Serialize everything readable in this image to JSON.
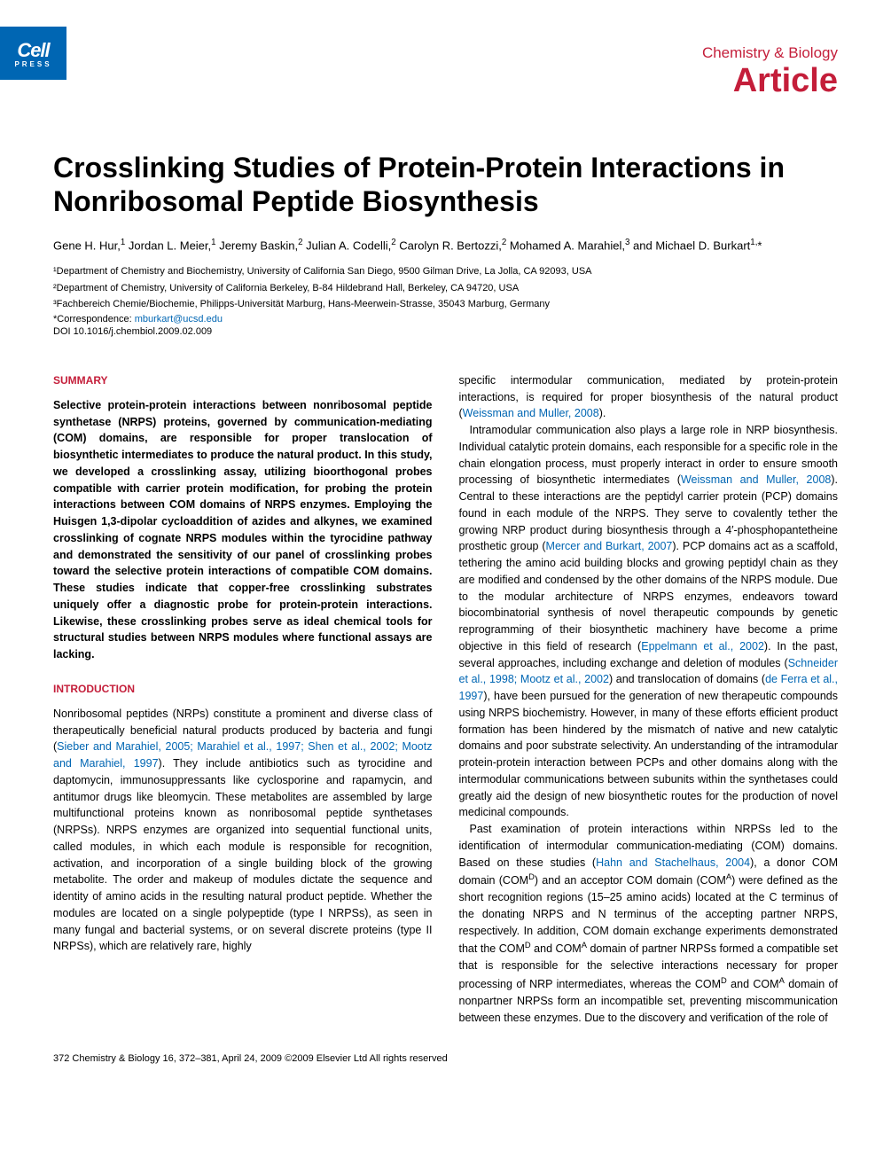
{
  "logo": {
    "brand": "Cell",
    "sub": "PRESS"
  },
  "header": {
    "journal": "Chemistry & Biology",
    "articleType": "Article"
  },
  "title": "Crosslinking Studies of Protein-Protein Interactions in Nonribosomal Peptide Biosynthesis",
  "authors_html": "Gene H. Hur,<sup>1</sup> Jordan L. Meier,<sup>1</sup> Jeremy Baskin,<sup>2</sup> Julian A. Codelli,<sup>2</sup> Carolyn R. Bertozzi,<sup>2</sup> Mohamed A. Marahiel,<sup>3</sup> and Michael D. Burkart<sup>1,</sup>*",
  "affiliations": [
    "¹Department of Chemistry and Biochemistry, University of California San Diego, 9500 Gilman Drive, La Jolla, CA 92093, USA",
    "²Department of Chemistry, University of California Berkeley, B-84 Hildebrand Hall, Berkeley, CA 94720, USA",
    "³Fachbereich Chemie/Biochemie, Philipps-Universität Marburg, Hans-Meerwein-Strasse, 35043 Marburg, Germany"
  ],
  "correspondence": {
    "label": "*Correspondence: ",
    "email": "mburkart@ucsd.edu"
  },
  "doi": "DOI 10.1016/j.chembiol.2009.02.009",
  "sections": {
    "summaryHeading": "SUMMARY",
    "summary": "Selective protein-protein interactions between nonribosomal peptide synthetase (NRPS) proteins, governed by communication-mediating (COM) domains, are responsible for proper translocation of biosynthetic intermediates to produce the natural product. In this study, we developed a crosslinking assay, utilizing bioorthogonal probes compatible with carrier protein modification, for probing the protein interactions between COM domains of NRPS enzymes. Employing the Huisgen 1,3-dipolar cycloaddition of azides and alkynes, we examined crosslinking of cognate NRPS modules within the tyrocidine pathway and demonstrated the sensitivity of our panel of crosslinking probes toward the selective protein interactions of compatible COM domains. These studies indicate that copper-free crosslinking substrates uniquely offer a diagnostic probe for protein-protein interactions. Likewise, these crosslinking probes serve as ideal chemical tools for structural studies between NRPS modules where functional assays are lacking.",
    "introHeading": "INTRODUCTION",
    "introPara1_html": "Nonribosomal peptides (NRPs) constitute a prominent and diverse class of therapeutically beneficial natural products produced by bacteria and fungi (<span class='ref-link'>Sieber and Marahiel, 2005; Marahiel et al., 1997; Shen et al., 2002; Mootz and Marahiel, 1997</span>). They include antibiotics such as tyrocidine and daptomycin, immunosuppressants like cyclosporine and rapamycin, and antitumor drugs like bleomycin. These metabolites are assembled by large multifunctional proteins known as nonribosomal peptide synthetases (NRPSs). NRPS enzymes are organized into sequential functional units, called modules, in which each module is responsible for recognition, activation, and incorporation of a single building block of the growing metabolite. The order and makeup of modules dictate the sequence and identity of amino acids in the resulting natural product peptide. Whether the modules are located on a single polypeptide (type I NRPSs), as seen in many fungal and bacterial systems, or on several discrete proteins (type II NRPSs), which are relatively rare, highly",
    "col2Para1_html": "specific intermodular communication, mediated by protein-protein interactions, is required for proper biosynthesis of the natural product (<span class='ref-link'>Weissman and Muller, 2008</span>).",
    "col2Para2_html": "Intramodular communication also plays a large role in NRP biosynthesis. Individual catalytic protein domains, each responsible for a specific role in the chain elongation process, must properly interact in order to ensure smooth processing of biosynthetic intermediates (<span class='ref-link'>Weissman and Muller, 2008</span>). Central to these interactions are the peptidyl carrier protein (PCP) domains found in each module of the NRPS. They serve to covalently tether the growing NRP product during biosynthesis through a 4′-phosphopantetheine prosthetic group (<span class='ref-link'>Mercer and Burkart, 2007</span>). PCP domains act as a scaffold, tethering the amino acid building blocks and growing peptidyl chain as they are modified and condensed by the other domains of the NRPS module. Due to the modular architecture of NRPS enzymes, endeavors toward biocombinatorial synthesis of novel therapeutic compounds by genetic reprogramming of their biosynthetic machinery have become a prime objective in this field of research (<span class='ref-link'>Eppelmann et al., 2002</span>). In the past, several approaches, including exchange and deletion of modules (<span class='ref-link'>Schneider et al., 1998; Mootz et al., 2002</span>) and translocation of domains (<span class='ref-link'>de Ferra et al., 1997</span>), have been pursued for the generation of new therapeutic compounds using NRPS biochemistry. However, in many of these efforts efficient product formation has been hindered by the mismatch of native and new catalytic domains and poor substrate selectivity. An understanding of the intramodular protein-protein interaction between PCPs and other domains along with the intermodular communications between subunits within the synthetases could greatly aid the design of new biosynthetic routes for the production of novel medicinal compounds.",
    "col2Para3_html": "Past examination of protein interactions within NRPSs led to the identification of intermodular communication-mediating (COM) domains. Based on these studies (<span class='ref-link'>Hahn and Stachelhaus, 2004</span>), a donor COM domain (COM<sup>D</sup>) and an acceptor COM domain (COM<sup>A</sup>) were defined as the short recognition regions (15–25 amino acids) located at the C terminus of the donating NRPS and N terminus of the accepting partner NRPS, respectively. In addition, COM domain exchange experiments demonstrated that the COM<sup>D</sup> and COM<sup>A</sup> domain of partner NRPSs formed a compatible set that is responsible for the selective interactions necessary for proper processing of NRP intermediates, whereas the COM<sup>D</sup> and COM<sup>A</sup> domain of nonpartner NRPSs form an incompatible set, preventing miscommunication between these enzymes. Due to the discovery and verification of the role of"
  },
  "footer": "372   Chemistry & Biology 16, 372–381, April 24, 2009 ©2009 Elsevier Ltd All rights reserved",
  "colors": {
    "brand_blue": "#0066b3",
    "brand_red": "#c41e3a",
    "text": "#000000",
    "background": "#ffffff"
  },
  "typography": {
    "title_size_pt": 24,
    "body_size_pt": 9.5,
    "heading_size_pt": 9
  }
}
